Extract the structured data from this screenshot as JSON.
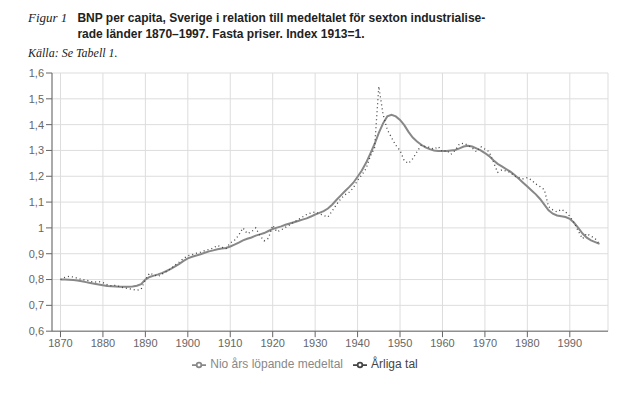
{
  "chart_data": {
    "type": "line",
    "title": "Figur 1",
    "subtitle": "BNP per capita, Sverige i relation till medeltalet för sexton industrialise-\nrade länder 1870–1997. Fasta priser. Index 1913=1.",
    "annotations": [
      "Källa: Se Tabell 1."
    ],
    "grid": true,
    "legend": "bottom",
    "xlim": [
      1868,
      1999
    ],
    "ylim": [
      0.6,
      1.6
    ],
    "xticks": [
      1870,
      1880,
      1890,
      1900,
      1910,
      1920,
      1930,
      1940,
      1950,
      1960,
      1970,
      1980,
      1990
    ],
    "yticks": [
      {
        "value": 0.6,
        "label": "0,6"
      },
      {
        "value": 0.7,
        "label": "0,7"
      },
      {
        "value": 0.8,
        "label": "0,8"
      },
      {
        "value": 0.9,
        "label": "0,9"
      },
      1,
      {
        "value": 1.1,
        "label": "1,1"
      },
      {
        "value": 1.2,
        "label": "1,2"
      },
      {
        "value": 1.3,
        "label": "1,3"
      },
      {
        "value": 1.4,
        "label": "1,4"
      },
      {
        "value": 1.5,
        "label": "1,5"
      },
      {
        "value": 1.6,
        "label": "1,6"
      }
    ],
    "x": [
      1870,
      1871,
      1872,
      1873,
      1874,
      1875,
      1876,
      1877,
      1878,
      1879,
      1880,
      1881,
      1882,
      1883,
      1884,
      1885,
      1886,
      1887,
      1888,
      1889,
      1890,
      1891,
      1892,
      1893,
      1894,
      1895,
      1896,
      1897,
      1898,
      1899,
      1900,
      1901,
      1902,
      1903,
      1904,
      1905,
      1906,
      1907,
      1908,
      1909,
      1910,
      1911,
      1912,
      1913,
      1914,
      1915,
      1916,
      1917,
      1918,
      1919,
      1920,
      1921,
      1922,
      1923,
      1924,
      1925,
      1926,
      1927,
      1928,
      1929,
      1930,
      1931,
      1932,
      1933,
      1934,
      1935,
      1936,
      1937,
      1938,
      1939,
      1940,
      1941,
      1942,
      1943,
      1944,
      1945,
      1946,
      1947,
      1948,
      1949,
      1950,
      1951,
      1952,
      1953,
      1954,
      1955,
      1956,
      1957,
      1958,
      1959,
      1960,
      1961,
      1962,
      1963,
      1964,
      1965,
      1966,
      1967,
      1968,
      1969,
      1970,
      1971,
      1972,
      1973,
      1974,
      1975,
      1976,
      1977,
      1978,
      1979,
      1980,
      1981,
      1982,
      1983,
      1984,
      1985,
      1986,
      1987,
      1988,
      1989,
      1990,
      1991,
      1992,
      1993,
      1994,
      1995,
      1996,
      1997
    ],
    "series": [
      {
        "name": "Nio års löpande medeltal",
        "color": "#888888",
        "line_style": "solid",
        "values": [
          0.8,
          0.8,
          0.799,
          0.798,
          0.796,
          0.793,
          0.79,
          0.787,
          0.784,
          0.781,
          0.778,
          0.775,
          0.774,
          0.773,
          0.772,
          0.772,
          0.772,
          0.773,
          0.776,
          0.782,
          0.8,
          0.81,
          0.815,
          0.82,
          0.826,
          0.833,
          0.841,
          0.851,
          0.861,
          0.872,
          0.882,
          0.888,
          0.893,
          0.898,
          0.904,
          0.909,
          0.913,
          0.917,
          0.92,
          0.922,
          0.928,
          0.935,
          0.943,
          0.952,
          0.958,
          0.963,
          0.97,
          0.975,
          0.98,
          0.988,
          0.996,
          1.001,
          1.006,
          1.012,
          1.017,
          1.022,
          1.027,
          1.032,
          1.037,
          1.044,
          1.052,
          1.058,
          1.065,
          1.075,
          1.09,
          1.108,
          1.125,
          1.142,
          1.158,
          1.175,
          1.198,
          1.222,
          1.252,
          1.288,
          1.325,
          1.368,
          1.405,
          1.432,
          1.438,
          1.432,
          1.418,
          1.398,
          1.372,
          1.35,
          1.335,
          1.322,
          1.312,
          1.305,
          1.3,
          1.298,
          1.298,
          1.298,
          1.3,
          1.302,
          1.308,
          1.315,
          1.318,
          1.315,
          1.308,
          1.3,
          1.29,
          1.278,
          1.262,
          1.248,
          1.238,
          1.228,
          1.218,
          1.205,
          1.19,
          1.175,
          1.16,
          1.145,
          1.13,
          1.112,
          1.09,
          1.068,
          1.055,
          1.048,
          1.045,
          1.042,
          1.035,
          1.02,
          1.0,
          0.978,
          0.962,
          0.952,
          0.945,
          0.938
        ]
      },
      {
        "name": "Årliga tal",
        "color": "#444444",
        "line_style": "dotted",
        "values": [
          0.8,
          0.808,
          0.812,
          0.81,
          0.805,
          0.8,
          0.798,
          0.793,
          0.79,
          0.792,
          0.788,
          0.78,
          0.775,
          0.778,
          0.772,
          0.768,
          0.765,
          0.762,
          0.758,
          0.762,
          0.8,
          0.825,
          0.818,
          0.812,
          0.822,
          0.832,
          0.842,
          0.856,
          0.868,
          0.882,
          0.892,
          0.896,
          0.902,
          0.906,
          0.912,
          0.916,
          0.922,
          0.932,
          0.925,
          0.92,
          0.942,
          0.952,
          0.972,
          1.0,
          0.978,
          0.985,
          1.0,
          0.97,
          0.95,
          0.96,
          1.01,
          0.985,
          0.992,
          1.002,
          1.012,
          1.022,
          1.032,
          1.042,
          1.052,
          1.058,
          1.062,
          1.055,
          1.048,
          1.042,
          1.065,
          1.09,
          1.112,
          1.128,
          1.138,
          1.155,
          1.185,
          1.205,
          1.23,
          1.278,
          1.31,
          1.548,
          1.44,
          1.38,
          1.35,
          1.32,
          1.3,
          1.26,
          1.25,
          1.268,
          1.295,
          1.32,
          1.315,
          1.312,
          1.305,
          1.315,
          1.295,
          1.3,
          1.285,
          1.3,
          1.325,
          1.328,
          1.32,
          1.31,
          1.295,
          1.315,
          1.305,
          1.295,
          1.255,
          1.215,
          1.225,
          1.22,
          1.215,
          1.2,
          1.195,
          1.19,
          1.195,
          1.185,
          1.17,
          1.16,
          1.148,
          1.082,
          1.07,
          1.062,
          1.072,
          1.062,
          1.045,
          1.02,
          0.988,
          0.958,
          0.978,
          0.968,
          0.958,
          0.938
        ]
      }
    ]
  }
}
